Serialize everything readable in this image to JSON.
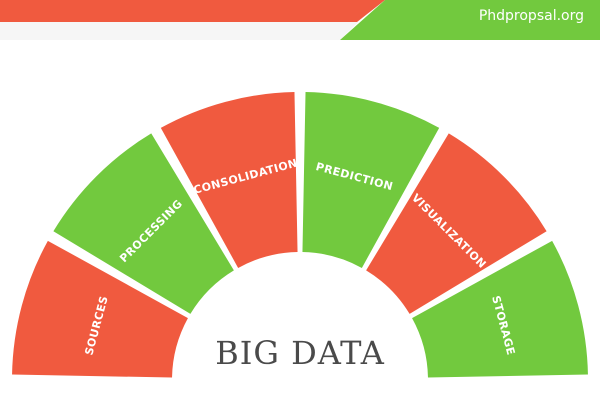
{
  "header": {
    "site": "Phdpropsal.org",
    "colors": {
      "orange": "#f05a3f",
      "green": "#72c93e",
      "band": "#f6f6f6"
    }
  },
  "diagram": {
    "title": "BIG DATA",
    "segments": [
      {
        "label": "SOURCES",
        "color": "#f05a3f"
      },
      {
        "label": "PROCESSING",
        "color": "#72c93e"
      },
      {
        "label": "CONSOLIDATION",
        "color": "#f05a3f"
      },
      {
        "label": "PREDICTION",
        "color": "#72c93e"
      },
      {
        "label": "VISUALIZATION",
        "color": "#f05a3f"
      },
      {
        "label": "STORAGE",
        "color": "#72c93e"
      }
    ]
  }
}
